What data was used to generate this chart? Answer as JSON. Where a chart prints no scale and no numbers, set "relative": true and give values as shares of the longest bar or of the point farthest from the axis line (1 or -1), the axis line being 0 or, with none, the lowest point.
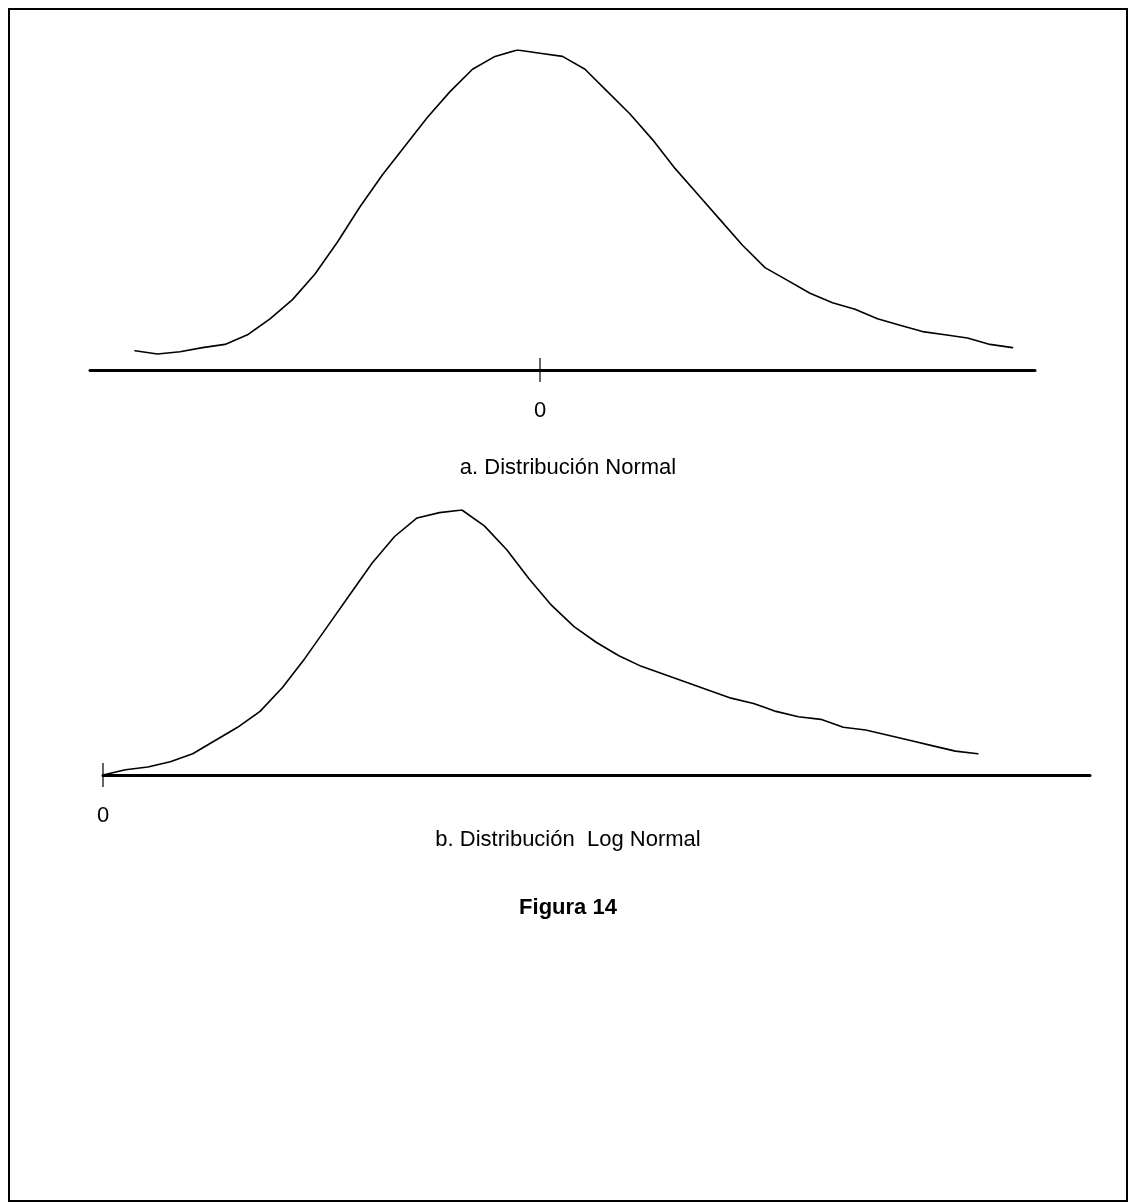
{
  "chart_data": [
    {
      "type": "line",
      "title": "a. Distribución Normal",
      "relative": true,
      "marker": "none",
      "annotations": [
        "0"
      ],
      "categories": [
        null,
        null,
        null,
        null,
        null,
        null,
        null,
        null,
        null,
        null,
        null,
        null,
        null,
        null,
        null,
        null,
        null,
        null,
        null,
        null,
        null,
        null,
        null,
        null,
        null,
        null,
        null,
        null,
        null,
        null,
        null,
        null,
        null,
        null,
        null,
        null,
        null,
        null,
        null,
        null,
        null,
        null,
        null
      ],
      "series": [
        {
          "color": "#000000",
          "values": [
            null,
            null,
            0.06,
            0.05,
            0.057,
            0.07,
            0.08,
            0.11,
            0.16,
            0.22,
            0.3,
            0.4,
            0.51,
            0.61,
            0.7,
            0.79,
            0.87,
            0.94,
            0.98,
            1.0,
            0.99,
            0.98,
            0.94,
            0.87,
            0.8,
            0.72,
            0.63,
            0.55,
            0.47,
            0.39,
            0.32,
            0.28,
            0.24,
            0.21,
            0.19,
            0.16,
            0.14,
            0.12,
            0.11,
            0.1,
            0.08,
            0.07,
            null
          ]
        }
      ]
    },
    {
      "type": "line",
      "title": "b. Distribución  Log Normal",
      "relative": true,
      "marker": "none",
      "annotations": [
        "0",
        "Figura 14"
      ],
      "categories": [
        null,
        null,
        null,
        null,
        null,
        null,
        null,
        null,
        null,
        null,
        null,
        null,
        null,
        null,
        null,
        null,
        null,
        null,
        null,
        null,
        null,
        null,
        null,
        null,
        null,
        null,
        null,
        null,
        null,
        null,
        null,
        null,
        null,
        null,
        null,
        null,
        null,
        null,
        null,
        null,
        null,
        null,
        null,
        null,
        null
      ],
      "series": [
        {
          "color": "#000000",
          "values": [
            0.0,
            0.02,
            0.03,
            0.05,
            0.08,
            0.13,
            0.18,
            0.24,
            0.33,
            0.44,
            0.56,
            0.68,
            0.8,
            0.9,
            0.97,
            0.99,
            1.0,
            0.94,
            0.85,
            0.74,
            0.64,
            0.56,
            0.5,
            0.45,
            0.41,
            0.38,
            0.35,
            0.32,
            0.29,
            0.27,
            0.24,
            0.22,
            0.21,
            0.18,
            0.17,
            0.15,
            0.13,
            0.11,
            0.09,
            0.08,
            null,
            null,
            null,
            null,
            null
          ]
        }
      ]
    }
  ]
}
